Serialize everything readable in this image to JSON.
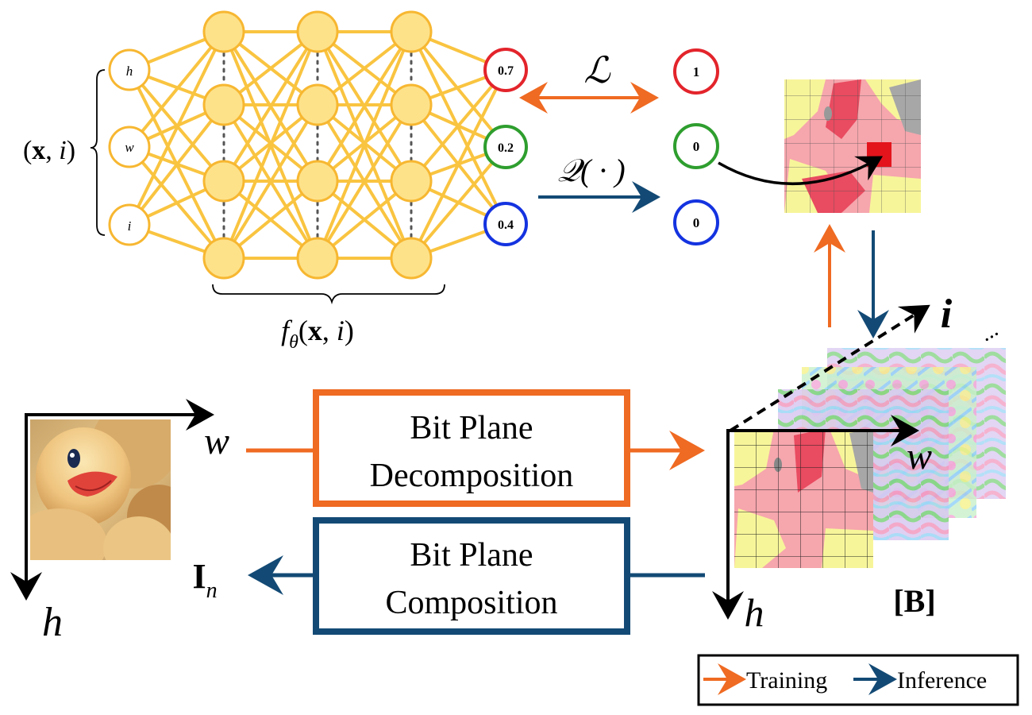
{
  "network": {
    "inputs": [
      "h",
      "w",
      "i"
    ],
    "input_group_label": "(x, i)",
    "function_label": "fθ(x, i)",
    "outputs": [
      "0.7",
      "0.2",
      "0.4"
    ],
    "targets": [
      "1",
      "0",
      "0"
    ],
    "loss_symbol": "ℒ",
    "quantizer_label": "𝒬( · )"
  },
  "image_axes": {
    "w": "w",
    "h": "h"
  },
  "stack_axes": {
    "w": "w",
    "h": "h",
    "i": "i",
    "dots": "...",
    "label": "[B]"
  },
  "boxes": {
    "decomposition": [
      "Bit Plane",
      "Decomposition"
    ],
    "composition": [
      "Bit Plane",
      "Composition"
    ]
  },
  "output_label": "I",
  "output_subscript": "n",
  "legend": {
    "training": "Training",
    "inference": "Inference"
  },
  "colors": {
    "node_fill": "#fde28a",
    "node_stroke": "#f7b731",
    "edge": "#f9c440",
    "training": "#ef6a22",
    "inference": "#134a75",
    "red": "#e3242b",
    "green": "#2e9e2e",
    "blue": "#1433e0"
  }
}
